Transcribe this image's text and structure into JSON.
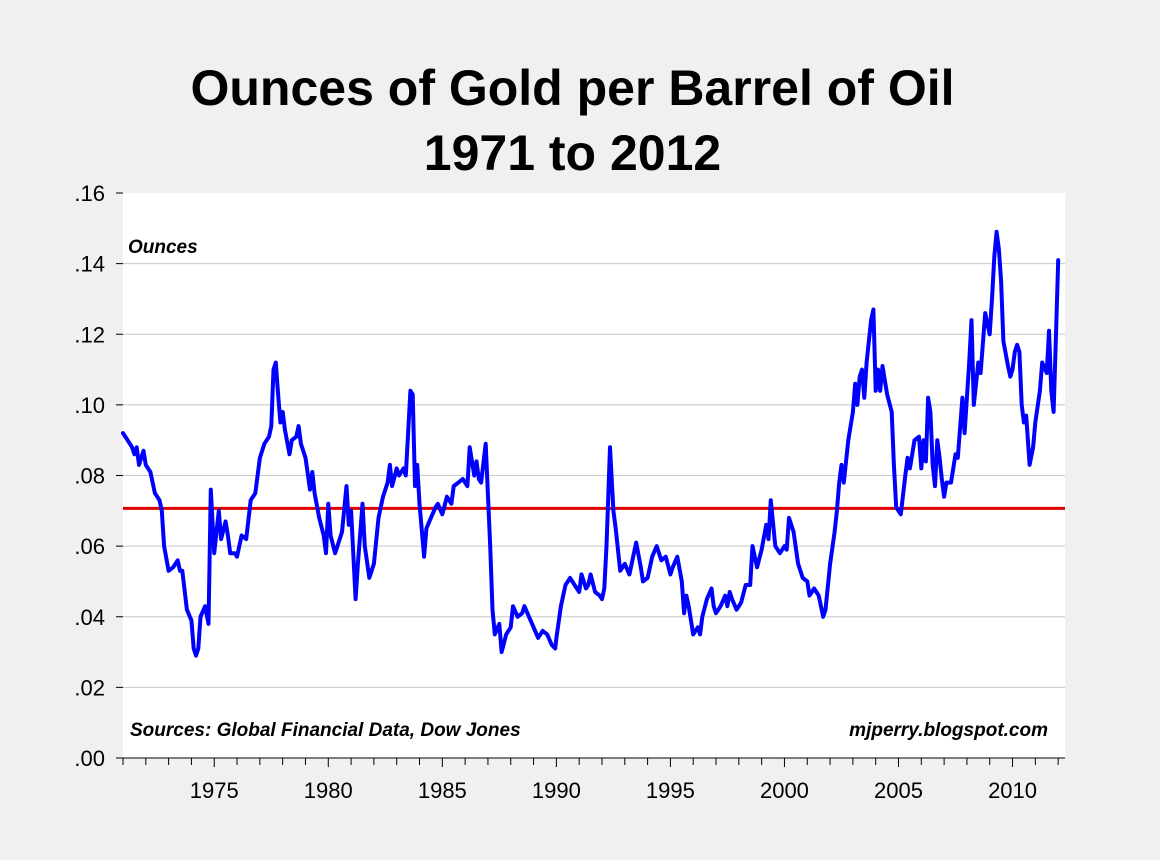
{
  "chart_data": {
    "type": "line",
    "title": "Ounces of Gold per Barrel of Oil",
    "subtitle": "1971 to 2012",
    "ylabel": "Ounces",
    "xlabel": "",
    "xlim": [
      1971,
      2012.3
    ],
    "ylim": [
      0,
      0.16
    ],
    "yticks": [
      {
        "value": 0.0,
        "label": ".00"
      },
      {
        "value": 0.02,
        "label": ".02"
      },
      {
        "value": 0.04,
        "label": ".04"
      },
      {
        "value": 0.06,
        "label": ".06"
      },
      {
        "value": 0.08,
        "label": ".08"
      },
      {
        "value": 0.1,
        "label": ".10"
      },
      {
        "value": 0.12,
        "label": ".12"
      },
      {
        "value": 0.14,
        "label": ".14"
      },
      {
        "value": 0.16,
        "label": ".16"
      }
    ],
    "xticks": [
      {
        "value": 1975,
        "label": "1975"
      },
      {
        "value": 1980,
        "label": "1980"
      },
      {
        "value": 1985,
        "label": "1985"
      },
      {
        "value": 1990,
        "label": "1990"
      },
      {
        "value": 1995,
        "label": "1995"
      },
      {
        "value": 2000,
        "label": "2000"
      },
      {
        "value": 2005,
        "label": "2005"
      },
      {
        "value": 2010,
        "label": "2010"
      }
    ],
    "grid": "horizontal",
    "series": [
      {
        "name": "",
        "color": "#0000ff",
        "points": [
          [
            1971.0,
            0.092
          ],
          [
            1971.2,
            0.09
          ],
          [
            1971.4,
            0.088
          ],
          [
            1971.5,
            0.086
          ],
          [
            1971.6,
            0.088
          ],
          [
            1971.7,
            0.083
          ],
          [
            1971.9,
            0.087
          ],
          [
            1972.0,
            0.083
          ],
          [
            1972.2,
            0.081
          ],
          [
            1972.4,
            0.075
          ],
          [
            1972.6,
            0.073
          ],
          [
            1972.7,
            0.07
          ],
          [
            1972.8,
            0.06
          ],
          [
            1973.0,
            0.053
          ],
          [
            1973.2,
            0.054
          ],
          [
            1973.4,
            0.056
          ],
          [
            1973.5,
            0.053
          ],
          [
            1973.6,
            0.053
          ],
          [
            1973.8,
            0.042
          ],
          [
            1974.0,
            0.039
          ],
          [
            1974.1,
            0.031
          ],
          [
            1974.2,
            0.029
          ],
          [
            1974.3,
            0.031
          ],
          [
            1974.4,
            0.04
          ],
          [
            1974.6,
            0.043
          ],
          [
            1974.75,
            0.038
          ],
          [
            1974.85,
            0.076
          ],
          [
            1975.0,
            0.058
          ],
          [
            1975.2,
            0.07
          ],
          [
            1975.3,
            0.062
          ],
          [
            1975.5,
            0.067
          ],
          [
            1975.6,
            0.063
          ],
          [
            1975.7,
            0.058
          ],
          [
            1975.9,
            0.058
          ],
          [
            1976.0,
            0.057
          ],
          [
            1976.2,
            0.063
          ],
          [
            1976.4,
            0.062
          ],
          [
            1976.6,
            0.073
          ],
          [
            1976.8,
            0.075
          ],
          [
            1977.0,
            0.085
          ],
          [
            1977.2,
            0.089
          ],
          [
            1977.4,
            0.091
          ],
          [
            1977.5,
            0.094
          ],
          [
            1977.6,
            0.11
          ],
          [
            1977.7,
            0.112
          ],
          [
            1977.8,
            0.103
          ],
          [
            1977.9,
            0.095
          ],
          [
            1978.0,
            0.098
          ],
          [
            1978.1,
            0.093
          ],
          [
            1978.3,
            0.086
          ],
          [
            1978.4,
            0.09
          ],
          [
            1978.6,
            0.091
          ],
          [
            1978.7,
            0.094
          ],
          [
            1978.8,
            0.089
          ],
          [
            1979.0,
            0.085
          ],
          [
            1979.2,
            0.076
          ],
          [
            1979.3,
            0.081
          ],
          [
            1979.4,
            0.075
          ],
          [
            1979.6,
            0.068
          ],
          [
            1979.8,
            0.063
          ],
          [
            1979.9,
            0.058
          ],
          [
            1980.0,
            0.072
          ],
          [
            1980.1,
            0.063
          ],
          [
            1980.3,
            0.058
          ],
          [
            1980.5,
            0.062
          ],
          [
            1980.6,
            0.064
          ],
          [
            1980.8,
            0.077
          ],
          [
            1980.9,
            0.066
          ],
          [
            1981.0,
            0.07
          ],
          [
            1981.2,
            0.045
          ],
          [
            1981.3,
            0.055
          ],
          [
            1981.5,
            0.072
          ],
          [
            1981.6,
            0.06
          ],
          [
            1981.8,
            0.051
          ],
          [
            1982.0,
            0.055
          ],
          [
            1982.2,
            0.068
          ],
          [
            1982.4,
            0.074
          ],
          [
            1982.6,
            0.078
          ],
          [
            1982.7,
            0.083
          ],
          [
            1982.8,
            0.077
          ],
          [
            1983.0,
            0.082
          ],
          [
            1983.1,
            0.08
          ],
          [
            1983.3,
            0.082
          ],
          [
            1983.4,
            0.08
          ],
          [
            1983.6,
            0.104
          ],
          [
            1983.7,
            0.103
          ],
          [
            1983.8,
            0.077
          ],
          [
            1983.9,
            0.083
          ],
          [
            1984.0,
            0.072
          ],
          [
            1984.2,
            0.057
          ],
          [
            1984.3,
            0.065
          ],
          [
            1984.5,
            0.068
          ],
          [
            1984.7,
            0.071
          ],
          [
            1984.8,
            0.072
          ],
          [
            1985.0,
            0.069
          ],
          [
            1985.2,
            0.074
          ],
          [
            1985.4,
            0.072
          ],
          [
            1985.5,
            0.077
          ],
          [
            1985.7,
            0.078
          ],
          [
            1985.9,
            0.079
          ],
          [
            1986.1,
            0.077
          ],
          [
            1986.2,
            0.088
          ],
          [
            1986.4,
            0.08
          ],
          [
            1986.5,
            0.084
          ],
          [
            1986.6,
            0.079
          ],
          [
            1986.7,
            0.078
          ],
          [
            1986.9,
            0.089
          ],
          [
            1987.1,
            0.06
          ],
          [
            1987.2,
            0.042
          ],
          [
            1987.3,
            0.035
          ],
          [
            1987.5,
            0.038
          ],
          [
            1987.6,
            0.03
          ],
          [
            1987.8,
            0.035
          ],
          [
            1988.0,
            0.037
          ],
          [
            1988.1,
            0.043
          ],
          [
            1988.3,
            0.04
          ],
          [
            1988.5,
            0.041
          ],
          [
            1988.6,
            0.043
          ],
          [
            1988.8,
            0.04
          ],
          [
            1989.0,
            0.037
          ],
          [
            1989.2,
            0.034
          ],
          [
            1989.4,
            0.036
          ],
          [
            1989.6,
            0.035
          ],
          [
            1989.8,
            0.032
          ],
          [
            1989.95,
            0.031
          ],
          [
            1990.0,
            0.034
          ],
          [
            1990.2,
            0.043
          ],
          [
            1990.4,
            0.049
          ],
          [
            1990.6,
            0.051
          ],
          [
            1990.8,
            0.049
          ],
          [
            1991.0,
            0.047
          ],
          [
            1991.1,
            0.052
          ],
          [
            1991.3,
            0.048
          ],
          [
            1991.4,
            0.049
          ],
          [
            1991.5,
            0.052
          ],
          [
            1991.7,
            0.047
          ],
          [
            1991.9,
            0.046
          ],
          [
            1992.0,
            0.045
          ],
          [
            1992.1,
            0.048
          ],
          [
            1992.2,
            0.06
          ],
          [
            1992.35,
            0.088
          ],
          [
            1992.5,
            0.07
          ],
          [
            1992.6,
            0.065
          ],
          [
            1992.8,
            0.053
          ],
          [
            1993.0,
            0.055
          ],
          [
            1993.2,
            0.052
          ],
          [
            1993.4,
            0.058
          ],
          [
            1993.5,
            0.061
          ],
          [
            1993.7,
            0.054
          ],
          [
            1993.8,
            0.05
          ],
          [
            1994.0,
            0.051
          ],
          [
            1994.2,
            0.057
          ],
          [
            1994.4,
            0.06
          ],
          [
            1994.6,
            0.056
          ],
          [
            1994.8,
            0.057
          ],
          [
            1995.0,
            0.052
          ],
          [
            1995.1,
            0.054
          ],
          [
            1995.3,
            0.057
          ],
          [
            1995.5,
            0.05
          ],
          [
            1995.6,
            0.041
          ],
          [
            1995.7,
            0.046
          ],
          [
            1995.8,
            0.043
          ],
          [
            1996.0,
            0.035
          ],
          [
            1996.2,
            0.037
          ],
          [
            1996.3,
            0.035
          ],
          [
            1996.4,
            0.04
          ],
          [
            1996.6,
            0.045
          ],
          [
            1996.8,
            0.048
          ],
          [
            1996.9,
            0.043
          ],
          [
            1997.0,
            0.041
          ],
          [
            1997.2,
            0.043
          ],
          [
            1997.4,
            0.046
          ],
          [
            1997.5,
            0.043
          ],
          [
            1997.6,
            0.047
          ],
          [
            1997.7,
            0.045
          ],
          [
            1997.9,
            0.042
          ],
          [
            1998.1,
            0.044
          ],
          [
            1998.3,
            0.049
          ],
          [
            1998.5,
            0.049
          ],
          [
            1998.6,
            0.06
          ],
          [
            1998.8,
            0.054
          ],
          [
            1999.0,
            0.059
          ],
          [
            1999.2,
            0.066
          ],
          [
            1999.3,
            0.062
          ],
          [
            1999.4,
            0.073
          ],
          [
            1999.6,
            0.06
          ],
          [
            1999.8,
            0.058
          ],
          [
            2000.0,
            0.06
          ],
          [
            2000.1,
            0.059
          ],
          [
            2000.2,
            0.068
          ],
          [
            2000.4,
            0.064
          ],
          [
            2000.6,
            0.055
          ],
          [
            2000.8,
            0.051
          ],
          [
            2001.0,
            0.05
          ],
          [
            2001.1,
            0.046
          ],
          [
            2001.3,
            0.048
          ],
          [
            2001.5,
            0.046
          ],
          [
            2001.7,
            0.04
          ],
          [
            2001.8,
            0.042
          ],
          [
            2002.0,
            0.055
          ],
          [
            2002.2,
            0.064
          ],
          [
            2002.3,
            0.07
          ],
          [
            2002.4,
            0.078
          ],
          [
            2002.5,
            0.083
          ],
          [
            2002.6,
            0.078
          ],
          [
            2002.8,
            0.09
          ],
          [
            2003.0,
            0.098
          ],
          [
            2003.1,
            0.106
          ],
          [
            2003.2,
            0.1
          ],
          [
            2003.3,
            0.108
          ],
          [
            2003.4,
            0.11
          ],
          [
            2003.5,
            0.102
          ],
          [
            2003.6,
            0.112
          ],
          [
            2003.8,
            0.124
          ],
          [
            2003.9,
            0.127
          ],
          [
            2004.0,
            0.104
          ],
          [
            2004.1,
            0.11
          ],
          [
            2004.2,
            0.104
          ],
          [
            2004.3,
            0.111
          ],
          [
            2004.5,
            0.103
          ],
          [
            2004.7,
            0.098
          ],
          [
            2004.8,
            0.083
          ],
          [
            2004.9,
            0.071
          ],
          [
            2005.1,
            0.069
          ],
          [
            2005.3,
            0.08
          ],
          [
            2005.4,
            0.085
          ],
          [
            2005.5,
            0.082
          ],
          [
            2005.7,
            0.09
          ],
          [
            2005.9,
            0.091
          ],
          [
            2006.0,
            0.082
          ],
          [
            2006.1,
            0.09
          ],
          [
            2006.2,
            0.084
          ],
          [
            2006.3,
            0.102
          ],
          [
            2006.4,
            0.098
          ],
          [
            2006.5,
            0.083
          ],
          [
            2006.6,
            0.077
          ],
          [
            2006.7,
            0.09
          ],
          [
            2006.8,
            0.085
          ],
          [
            2006.9,
            0.079
          ],
          [
            2007.0,
            0.074
          ],
          [
            2007.1,
            0.078
          ],
          [
            2007.3,
            0.078
          ],
          [
            2007.5,
            0.086
          ],
          [
            2007.6,
            0.085
          ],
          [
            2007.8,
            0.102
          ],
          [
            2007.9,
            0.092
          ],
          [
            2008.1,
            0.112
          ],
          [
            2008.2,
            0.124
          ],
          [
            2008.3,
            0.1
          ],
          [
            2008.5,
            0.112
          ],
          [
            2008.6,
            0.109
          ],
          [
            2008.8,
            0.126
          ],
          [
            2009.0,
            0.12
          ],
          [
            2009.1,
            0.13
          ],
          [
            2009.2,
            0.142
          ],
          [
            2009.3,
            0.149
          ],
          [
            2009.4,
            0.144
          ],
          [
            2009.5,
            0.135
          ],
          [
            2009.6,
            0.118
          ],
          [
            2009.8,
            0.111
          ],
          [
            2009.9,
            0.108
          ],
          [
            2010.0,
            0.11
          ],
          [
            2010.1,
            0.115
          ],
          [
            2010.2,
            0.117
          ],
          [
            2010.3,
            0.115
          ],
          [
            2010.4,
            0.1
          ],
          [
            2010.5,
            0.095
          ],
          [
            2010.6,
            0.097
          ],
          [
            2010.75,
            0.083
          ],
          [
            2010.9,
            0.088
          ],
          [
            2011.0,
            0.095
          ],
          [
            2011.2,
            0.104
          ],
          [
            2011.3,
            0.112
          ],
          [
            2011.5,
            0.109
          ],
          [
            2011.6,
            0.121
          ],
          [
            2011.7,
            0.104
          ],
          [
            2011.8,
            0.098
          ],
          [
            2011.9,
            0.119
          ],
          [
            2012.0,
            0.141
          ]
        ]
      }
    ],
    "reference_line": {
      "value": 0.0707,
      "color": "#e00000"
    },
    "annotations": [
      {
        "text": "Sources: Global Financial Data, Dow Jones"
      },
      {
        "text": "mjperry.blogspot.com"
      }
    ]
  },
  "colors": {
    "background": "#f0f0f0",
    "plot_background": "#ffffff",
    "line": "#0000ff",
    "reference": "#e00000",
    "grid": "#c8c8c8"
  }
}
